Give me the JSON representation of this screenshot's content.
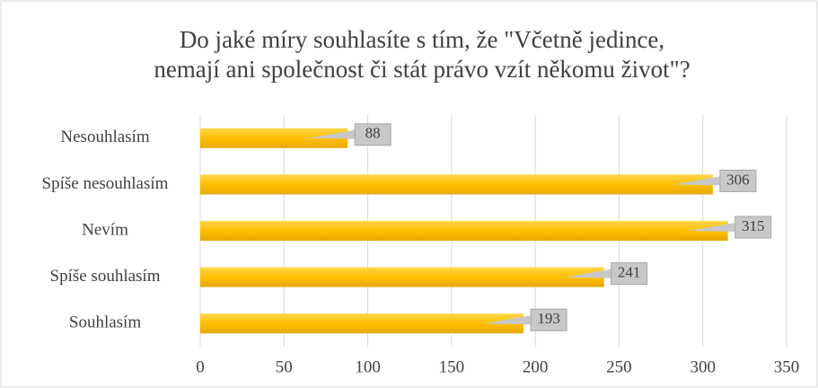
{
  "chart_data": {
    "type": "bar",
    "orientation": "horizontal",
    "title": [
      "Do jaké míry souhlasíte s tím, že \"Včetně jedince,",
      "nemají ani společnost či stát právo vzít někomu život\"?"
    ],
    "categories": [
      "Nesouhlasím",
      "Spíše nesouhlasím",
      "Nevím",
      "Spíše souhlasím",
      "Souhlasím"
    ],
    "values": [
      88,
      306,
      315,
      241,
      193
    ],
    "color": "#ffc000",
    "xlim": [
      0,
      350
    ],
    "xticks": [
      0,
      50,
      100,
      150,
      200,
      250,
      300,
      350
    ],
    "grid": true
  }
}
